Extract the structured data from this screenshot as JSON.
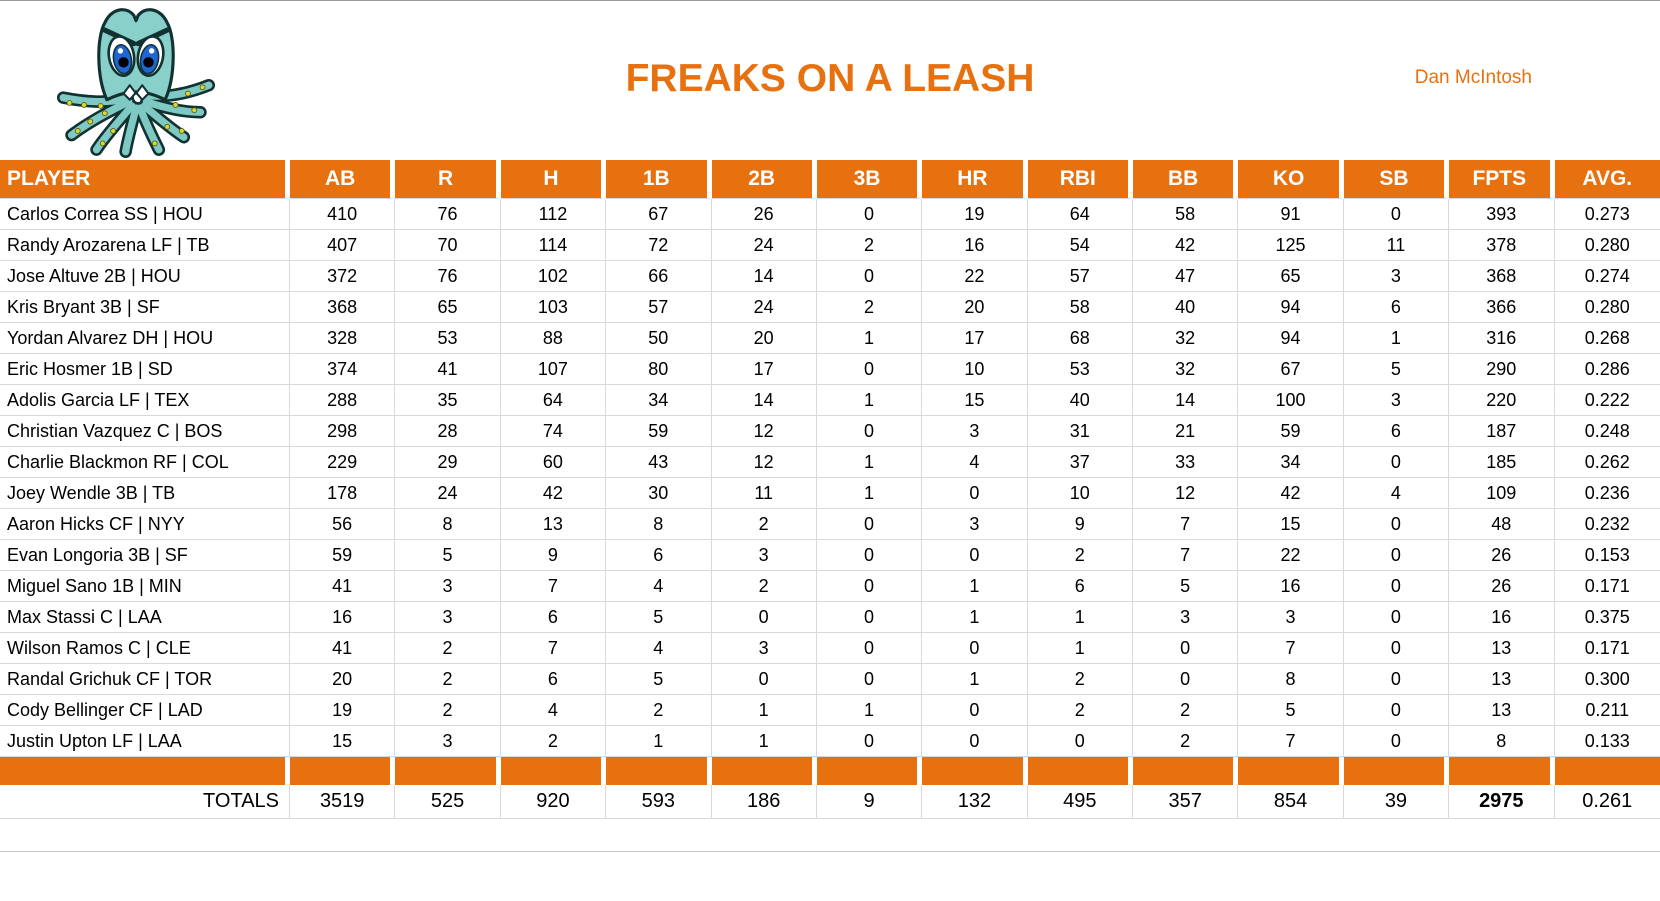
{
  "header": {
    "title": "FREAKS ON A LEASH",
    "owner": "Dan McIntosh",
    "logo_icon": "octopus-logo"
  },
  "colors": {
    "accent_orange": "#E8710F",
    "header_text": "#FFFFFF",
    "gridline": "#D9D9D9",
    "body_text": "#000000",
    "logo_teal": "#7FC9C4",
    "logo_eye_blue": "#1E66D6",
    "logo_sucker_yellow": "#D9D832"
  },
  "table": {
    "columns": [
      "PLAYER",
      "AB",
      "R",
      "H",
      "1B",
      "2B",
      "3B",
      "HR",
      "RBI",
      "BB",
      "KO",
      "SB",
      "FPTS",
      "AVG."
    ],
    "rows": [
      [
        "Carlos Correa SS | HOU",
        410,
        76,
        112,
        67,
        26,
        0,
        19,
        64,
        58,
        91,
        0,
        393,
        "0.273"
      ],
      [
        "Randy Arozarena LF | TB",
        407,
        70,
        114,
        72,
        24,
        2,
        16,
        54,
        42,
        125,
        11,
        378,
        "0.280"
      ],
      [
        "Jose Altuve 2B | HOU",
        372,
        76,
        102,
        66,
        14,
        0,
        22,
        57,
        47,
        65,
        3,
        368,
        "0.274"
      ],
      [
        "Kris Bryant 3B | SF",
        368,
        65,
        103,
        57,
        24,
        2,
        20,
        58,
        40,
        94,
        6,
        366,
        "0.280"
      ],
      [
        "Yordan Alvarez DH | HOU",
        328,
        53,
        88,
        50,
        20,
        1,
        17,
        68,
        32,
        94,
        1,
        316,
        "0.268"
      ],
      [
        "Eric Hosmer 1B | SD",
        374,
        41,
        107,
        80,
        17,
        0,
        10,
        53,
        32,
        67,
        5,
        290,
        "0.286"
      ],
      [
        "Adolis Garcia LF | TEX",
        288,
        35,
        64,
        34,
        14,
        1,
        15,
        40,
        14,
        100,
        3,
        220,
        "0.222"
      ],
      [
        "Christian Vazquez C | BOS",
        298,
        28,
        74,
        59,
        12,
        0,
        3,
        31,
        21,
        59,
        6,
        187,
        "0.248"
      ],
      [
        "Charlie Blackmon RF | COL",
        229,
        29,
        60,
        43,
        12,
        1,
        4,
        37,
        33,
        34,
        0,
        185,
        "0.262"
      ],
      [
        "Joey Wendle 3B | TB",
        178,
        24,
        42,
        30,
        11,
        1,
        0,
        10,
        12,
        42,
        4,
        109,
        "0.236"
      ],
      [
        "Aaron Hicks CF | NYY",
        56,
        8,
        13,
        8,
        2,
        0,
        3,
        9,
        7,
        15,
        0,
        48,
        "0.232"
      ],
      [
        "Evan Longoria 3B | SF",
        59,
        5,
        9,
        6,
        3,
        0,
        0,
        2,
        7,
        22,
        0,
        26,
        "0.153"
      ],
      [
        "Miguel Sano 1B | MIN",
        41,
        3,
        7,
        4,
        2,
        0,
        1,
        6,
        5,
        16,
        0,
        26,
        "0.171"
      ],
      [
        "Max Stassi C | LAA",
        16,
        3,
        6,
        5,
        0,
        0,
        1,
        1,
        3,
        3,
        0,
        16,
        "0.375"
      ],
      [
        "Wilson Ramos C | CLE",
        41,
        2,
        7,
        4,
        3,
        0,
        0,
        1,
        0,
        7,
        0,
        13,
        "0.171"
      ],
      [
        "Randal Grichuk CF | TOR",
        20,
        2,
        6,
        5,
        0,
        0,
        1,
        2,
        0,
        8,
        0,
        13,
        "0.300"
      ],
      [
        "Cody Bellinger CF | LAD",
        19,
        2,
        4,
        2,
        1,
        1,
        0,
        2,
        2,
        5,
        0,
        13,
        "0.211"
      ],
      [
        "Justin Upton LF | LAA",
        15,
        3,
        2,
        1,
        1,
        0,
        0,
        0,
        2,
        7,
        0,
        8,
        "0.133"
      ]
    ],
    "totals": {
      "label": "TOTALS",
      "values": [
        3519,
        525,
        920,
        593,
        186,
        9,
        132,
        495,
        357,
        854,
        39,
        2975,
        "0.261"
      ],
      "bold_column": "FPTS"
    }
  }
}
